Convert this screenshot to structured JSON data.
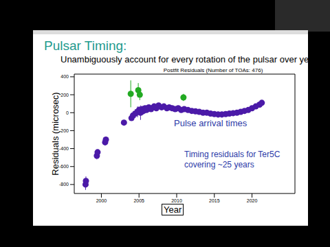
{
  "slide": {
    "title": "Pulsar Timing:",
    "subtitle": "Unambiguously account for every rotation of the pulsar over years"
  },
  "chart_data": {
    "type": "scatter",
    "title": "Postfit Residuals (Number of TOAs: 476)",
    "x_label": "Year",
    "y_label": "Residuals (microsec)",
    "annotations": [
      "Pulse arrival times",
      "Timing residuals for Ter5C\ncovering ~25 years"
    ],
    "xlim": [
      1996.4,
      2025.7
    ],
    "xticks": [
      2000,
      2005,
      2010,
      2015,
      2020
    ],
    "ylim": [
      -900,
      430
    ],
    "yticks": [
      -800,
      -600,
      -400,
      -200,
      0,
      200,
      400
    ],
    "marker": "circle",
    "series": [
      {
        "color": "#4b1aa8",
        "x": [
          1997.9,
          1997.95,
          1999.4,
          1999.5,
          2000.5,
          2000.6,
          2003.0,
          2004.0,
          2004.2,
          2004.5,
          2004.8,
          2005.0,
          2005.2,
          2005.4,
          2005.6,
          2005.8,
          2006.0,
          2006.3,
          2006.6,
          2007.0,
          2007.3,
          2007.6,
          2008.0,
          2008.3,
          2008.7,
          2009.0,
          2009.4,
          2009.8,
          2010.2,
          2010.6,
          2011.0,
          2011.5,
          2012.0,
          2012.5,
          2013.0,
          2013.5,
          2014.0,
          2014.5,
          2015.0,
          2015.5,
          2016.0,
          2016.5,
          2017.0,
          2017.5,
          2018.0,
          2018.5,
          2019.0,
          2019.5,
          2020.0,
          2020.5,
          2021.0,
          2021.3
        ],
        "values": [
          -800,
          -760,
          -480,
          -440,
          -330,
          -300,
          -110,
          -60,
          -30,
          -10,
          10,
          30,
          0,
          40,
          20,
          50,
          30,
          60,
          40,
          70,
          50,
          80,
          60,
          70,
          50,
          60,
          50,
          40,
          50,
          30,
          40,
          30,
          20,
          15,
          10,
          0,
          0,
          -10,
          -15,
          -20,
          -20,
          -15,
          -10,
          -5,
          0,
          10,
          20,
          30,
          50,
          70,
          90,
          110
        ],
        "errors": [
          60,
          50,
          40,
          30,
          35,
          30,
          25,
          30,
          40,
          50,
          60,
          40,
          80,
          30,
          40,
          25,
          20,
          20,
          20,
          20,
          20,
          25,
          20,
          20,
          20,
          20,
          20,
          20,
          20,
          20,
          20,
          20,
          20,
          20,
          20,
          20,
          20,
          20,
          20,
          20,
          20,
          20,
          20,
          20,
          20,
          20,
          20,
          20,
          20,
          20,
          20,
          25
        ]
      },
      {
        "color": "#22aa22",
        "x": [
          2003.9,
          2004.9,
          2005.1,
          2010.9
        ],
        "values": [
          210,
          250,
          200,
          170
        ],
        "errors": [
          150,
          80,
          60,
          40
        ]
      }
    ]
  }
}
